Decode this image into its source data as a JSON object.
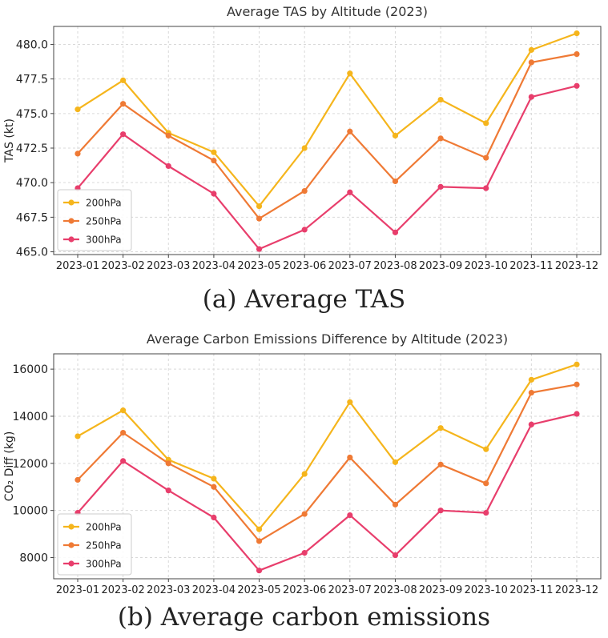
{
  "colors": {
    "s200": "#f5b51c",
    "s250": "#ef7a35",
    "s300": "#e83e6c",
    "grid": "#d9d9d9",
    "axis": "#444444"
  },
  "captions": {
    "a": "(a) Average TAS",
    "b": "(b) Average carbon emissions"
  },
  "chart_data": [
    {
      "type": "line",
      "title": "Average TAS by Altitude (2023)",
      "xlabel": "",
      "ylabel": "TAS (kt)",
      "categories": [
        "2023-01",
        "2023-02",
        "2023-03",
        "2023-04",
        "2023-05",
        "2023-06",
        "2023-07",
        "2023-08",
        "2023-09",
        "2023-10",
        "2023-11",
        "2023-12"
      ],
      "ylim": [
        464.8,
        481.3
      ],
      "yticks": [
        465.0,
        467.5,
        470.0,
        472.5,
        475.0,
        477.5,
        480.0
      ],
      "ytick_labels": [
        "465.0",
        "467.5",
        "470.0",
        "472.5",
        "475.0",
        "477.5",
        "480.0"
      ],
      "grid": true,
      "legend": "lower-left",
      "series": [
        {
          "name": "200hPa",
          "values": [
            475.3,
            477.4,
            473.6,
            472.2,
            468.3,
            472.5,
            477.9,
            473.4,
            476.0,
            474.3,
            479.6,
            480.8
          ]
        },
        {
          "name": "250hPa",
          "values": [
            472.1,
            475.7,
            473.4,
            471.6,
            467.4,
            469.4,
            473.7,
            470.1,
            473.2,
            471.8,
            478.7,
            479.3
          ]
        },
        {
          "name": "300hPa",
          "values": [
            469.6,
            473.5,
            471.2,
            469.2,
            465.2,
            466.6,
            469.3,
            466.4,
            469.7,
            469.6,
            476.2,
            477.0
          ]
        }
      ]
    },
    {
      "type": "line",
      "title": "Average Carbon Emissions Difference by Altitude (2023)",
      "xlabel": "",
      "ylabel": "CO₂ Diff (kg)",
      "categories": [
        "2023-01",
        "2023-02",
        "2023-03",
        "2023-04",
        "2023-05",
        "2023-06",
        "2023-07",
        "2023-08",
        "2023-09",
        "2023-10",
        "2023-11",
        "2023-12"
      ],
      "ylim": [
        7100,
        16650
      ],
      "yticks": [
        8000,
        10000,
        12000,
        14000,
        16000
      ],
      "ytick_labels": [
        "8000",
        "10000",
        "12000",
        "14000",
        "16000"
      ],
      "grid": true,
      "legend": "lower-left",
      "series": [
        {
          "name": "200hPa",
          "values": [
            13150,
            14250,
            12150,
            11350,
            9200,
            11550,
            14600,
            12050,
            13500,
            12600,
            15550,
            16200
          ]
        },
        {
          "name": "250hPa",
          "values": [
            11300,
            13300,
            12000,
            11000,
            8700,
            9850,
            12250,
            10250,
            11950,
            11150,
            15000,
            15350
          ]
        },
        {
          "name": "300hPa",
          "values": [
            9900,
            12100,
            10850,
            9700,
            7450,
            8200,
            9800,
            8100,
            10000,
            9900,
            13650,
            14100
          ]
        }
      ]
    }
  ]
}
